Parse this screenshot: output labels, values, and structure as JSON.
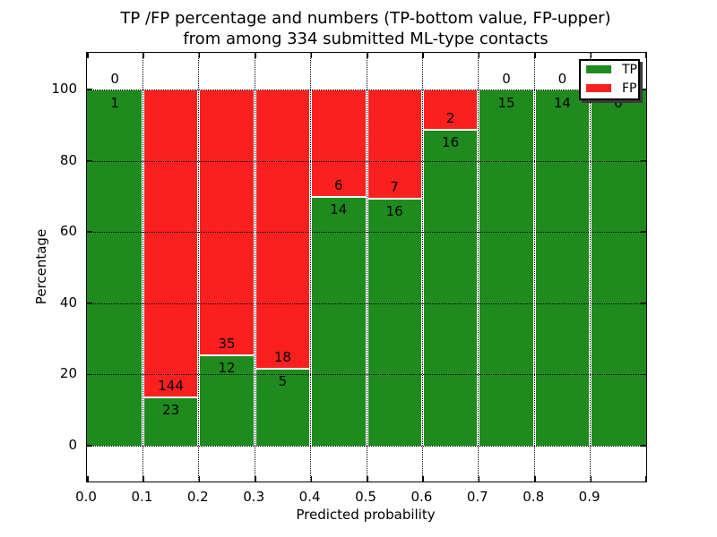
{
  "title": {
    "line1": "TP /FP percentage and numbers (TP-bottom value, FP-upper)",
    "line2": "from among 334 submitted ML-type contacts"
  },
  "axes": {
    "x_label": "Predicted probability",
    "y_label": "Percentage",
    "x_tick_labels": [
      "0.0",
      "0.1",
      "0.2",
      "0.3",
      "0.4",
      "0.5",
      "0.6",
      "0.7",
      "0.8",
      "0.9"
    ],
    "y_tick_labels": [
      "0",
      "20",
      "40",
      "60",
      "80",
      "100"
    ],
    "y_tick_values": [
      0,
      20,
      40,
      60,
      80,
      100
    ]
  },
  "legend": {
    "items": [
      {
        "label": "TP",
        "color": "#1f8b1f"
      },
      {
        "label": "FP",
        "color": "#fa2020"
      }
    ]
  },
  "chart_data": {
    "type": "bar",
    "variant": "stacked-normalized-percent",
    "title": "TP /FP percentage and numbers (TP-bottom value, FP-upper) from among 334 submitted ML-type contacts",
    "xlabel": "Predicted probability",
    "ylabel": "Percentage",
    "total_contacts": 334,
    "bins": [
      "0.0-0.1",
      "0.1-0.2",
      "0.2-0.3",
      "0.3-0.4",
      "0.4-0.5",
      "0.5-0.6",
      "0.6-0.7",
      "0.7-0.8",
      "0.8-0.9",
      "0.9-1.0"
    ],
    "series": [
      {
        "name": "TP",
        "color": "#1f8b1f",
        "counts": [
          1,
          23,
          12,
          5,
          14,
          16,
          16,
          15,
          14,
          6
        ]
      },
      {
        "name": "FP",
        "color": "#fa2020",
        "counts": [
          0,
          144,
          35,
          18,
          6,
          7,
          2,
          0,
          0,
          0
        ]
      }
    ],
    "xlim": [
      0.0,
      1.0
    ],
    "ylim": [
      -10,
      110
    ],
    "x_ticks": [
      0.0,
      0.1,
      0.2,
      0.3,
      0.4,
      0.5,
      0.6,
      0.7,
      0.8,
      0.9
    ],
    "y_ticks": [
      0,
      20,
      40,
      60,
      80,
      100
    ],
    "grid": "dotted",
    "bar_edge_color": "#ffffff",
    "legend_position": "upper right"
  }
}
